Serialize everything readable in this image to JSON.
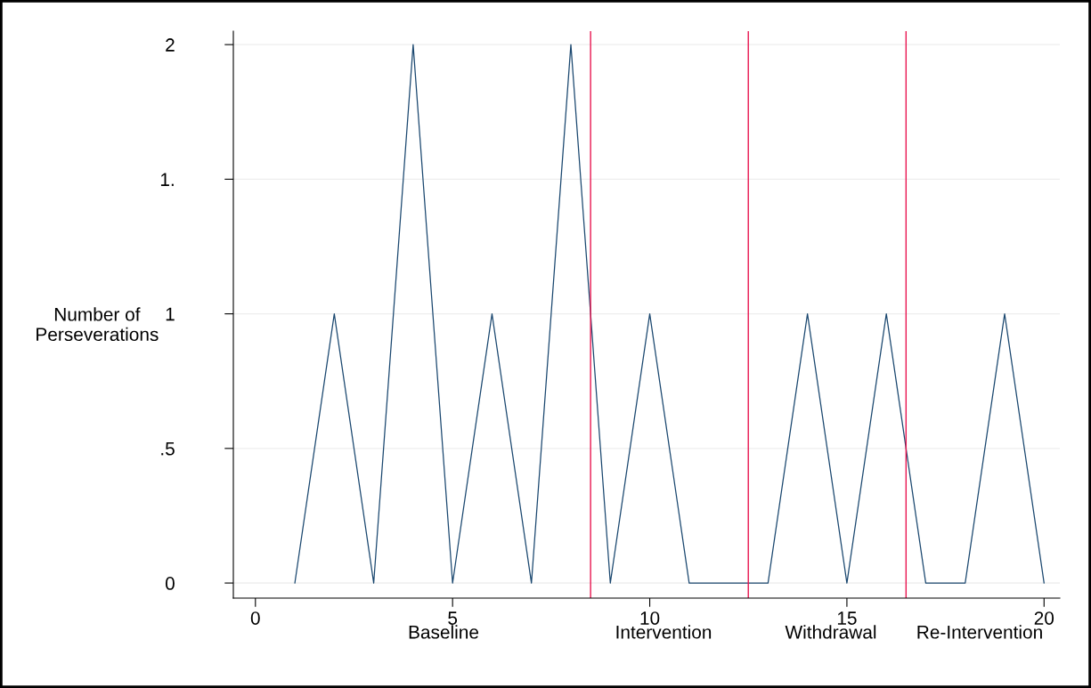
{
  "chart_data": {
    "type": "line",
    "ylabel": "Number of\nPerseverations",
    "x": [
      1,
      2,
      3,
      4,
      5,
      6,
      7,
      8,
      9,
      10,
      11,
      12,
      13,
      14,
      15,
      16,
      17,
      18,
      19,
      20
    ],
    "series": [
      {
        "color": "#1a476f",
        "values": [
          0,
          1,
          0,
          2,
          0,
          1,
          0,
          2,
          0,
          1,
          0,
          0,
          0,
          1,
          0,
          1,
          0,
          0,
          1,
          0
        ]
      }
    ],
    "xlim": [
      -0.56,
      20.4
    ],
    "xticks": [
      0,
      5,
      10,
      15,
      20
    ],
    "ylim": [
      -0.056,
      2.05
    ],
    "yticks": [
      0,
      {
        "value": 0.5,
        "label": ".5"
      },
      1,
      {
        "value": 1.5,
        "label": "1."
      },
      2
    ],
    "grid": "y",
    "legend": false,
    "marker": "none",
    "line_style": "solid",
    "ref_lines": [
      {
        "axis": "x",
        "value": 8.5,
        "color": "#e8144f"
      },
      {
        "axis": "x",
        "value": 12.5,
        "color": "#e8144f"
      },
      {
        "axis": "x",
        "value": 16.5,
        "color": "#e8144f"
      }
    ],
    "annotations": [
      "Baseline",
      "Intervention",
      "Withdrawal",
      "Re-Intervention"
    ]
  }
}
